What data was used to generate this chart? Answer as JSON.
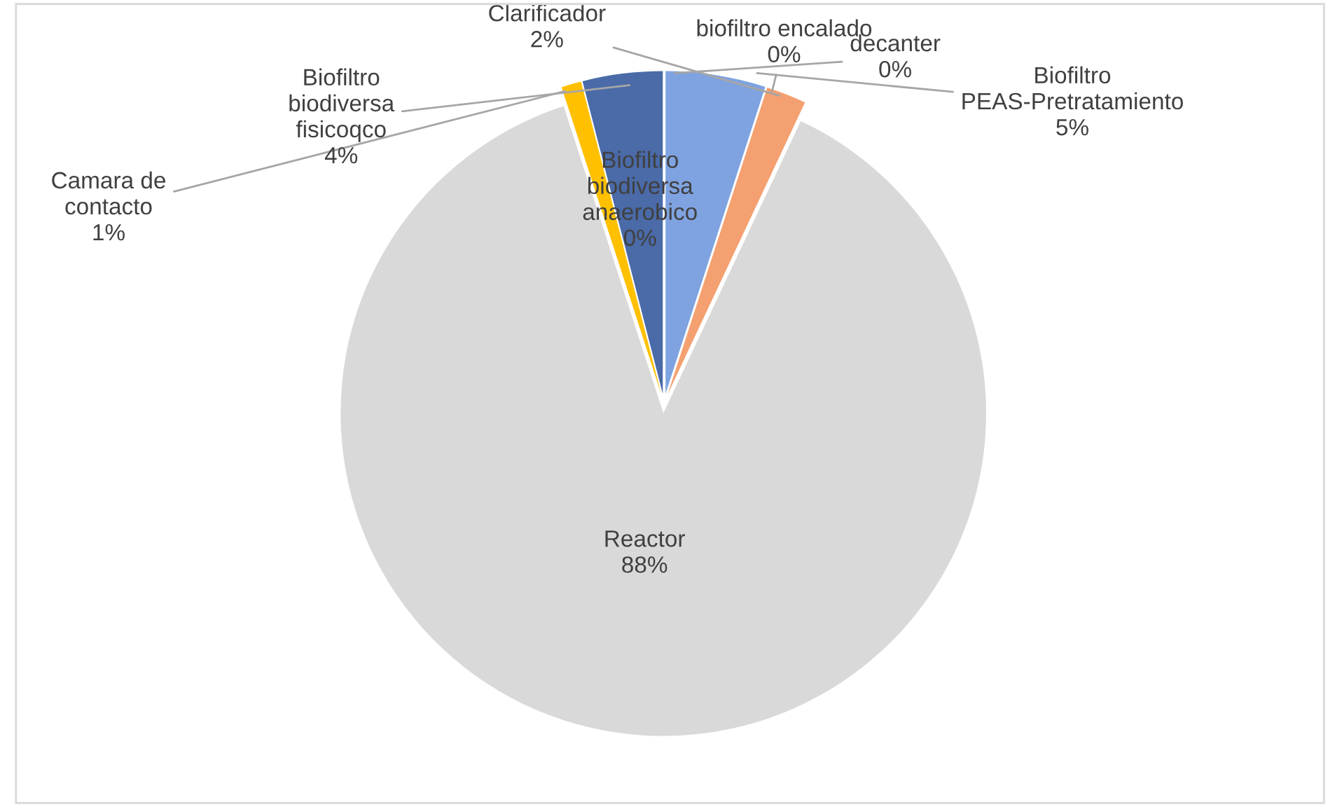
{
  "chart_data": {
    "type": "pie",
    "categories": [
      "Biofiltro PEAS-Pretratamiento",
      "Clarificador",
      "Reactor",
      "Camara de contacto",
      "Biofiltro biodiversa anaerobico",
      "Biofiltro biodiversa fisicoqco",
      "decanter",
      "biofiltro encalado"
    ],
    "values": [
      5,
      2,
      88,
      1,
      0,
      4,
      0,
      0
    ],
    "colors": [
      "#7fa3e0",
      "#f4a070",
      "#d9d9d9",
      "#ffc000",
      "#9dc3e6",
      "#4a6aa8",
      "#a0522d",
      "#70ad47"
    ],
    "value_labels": [
      "5%",
      "2%",
      "88%",
      "1%",
      "0%",
      "4%",
      "0%",
      "0%"
    ]
  }
}
